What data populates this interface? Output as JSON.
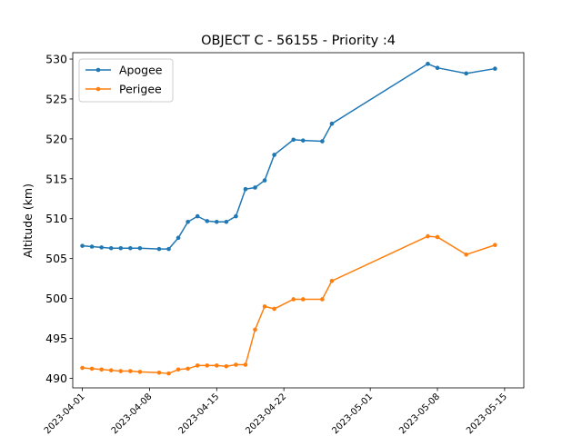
{
  "chart_data": {
    "type": "line",
    "title": "OBJECT C - 56155 - Priority :4",
    "xlabel": "",
    "ylabel": "Altitude (km)",
    "xlim": [
      "2023-03-31",
      "2023-05-17"
    ],
    "ylim": [
      488.8,
      530.8
    ],
    "x_ticks": [
      "2023-04-01",
      "2023-04-08",
      "2023-04-15",
      "2023-04-22",
      "2023-05-01",
      "2023-05-08",
      "2023-05-15"
    ],
    "y_ticks": [
      490,
      495,
      500,
      505,
      510,
      515,
      520,
      525,
      530
    ],
    "grid": false,
    "legend_position": "upper-left",
    "series": [
      {
        "name": "Apogee",
        "color": "#1f77b4",
        "points": [
          [
            "2023-04-01",
            506.6
          ],
          [
            "2023-04-02",
            506.5
          ],
          [
            "2023-04-03",
            506.4
          ],
          [
            "2023-04-04",
            506.3
          ],
          [
            "2023-04-05",
            506.3
          ],
          [
            "2023-04-06",
            506.3
          ],
          [
            "2023-04-07",
            506.3
          ],
          [
            "2023-04-09",
            506.2
          ],
          [
            "2023-04-10",
            506.2
          ],
          [
            "2023-04-11",
            507.6
          ],
          [
            "2023-04-12",
            509.6
          ],
          [
            "2023-04-13",
            510.3
          ],
          [
            "2023-04-14",
            509.7
          ],
          [
            "2023-04-15",
            509.6
          ],
          [
            "2023-04-16",
            509.6
          ],
          [
            "2023-04-17",
            510.3
          ],
          [
            "2023-04-18",
            513.7
          ],
          [
            "2023-04-19",
            513.9
          ],
          [
            "2023-04-20",
            514.8
          ],
          [
            "2023-04-21",
            518.0
          ],
          [
            "2023-04-23",
            519.9
          ],
          [
            "2023-04-24",
            519.8
          ],
          [
            "2023-04-26",
            519.7
          ],
          [
            "2023-04-27",
            521.9
          ],
          [
            "2023-05-07",
            529.4
          ],
          [
            "2023-05-08",
            528.9
          ],
          [
            "2023-05-11",
            528.2
          ],
          [
            "2023-05-14",
            528.8
          ]
        ]
      },
      {
        "name": "Perigee",
        "color": "#ff7f0e",
        "points": [
          [
            "2023-04-01",
            491.3
          ],
          [
            "2023-04-02",
            491.2
          ],
          [
            "2023-04-03",
            491.1
          ],
          [
            "2023-04-04",
            491.0
          ],
          [
            "2023-04-05",
            490.9
          ],
          [
            "2023-04-06",
            490.9
          ],
          [
            "2023-04-07",
            490.8
          ],
          [
            "2023-04-09",
            490.7
          ],
          [
            "2023-04-10",
            490.6
          ],
          [
            "2023-04-11",
            491.1
          ],
          [
            "2023-04-12",
            491.2
          ],
          [
            "2023-04-13",
            491.6
          ],
          [
            "2023-04-14",
            491.6
          ],
          [
            "2023-04-15",
            491.6
          ],
          [
            "2023-04-16",
            491.5
          ],
          [
            "2023-04-17",
            491.7
          ],
          [
            "2023-04-18",
            491.7
          ],
          [
            "2023-04-19",
            496.1
          ],
          [
            "2023-04-20",
            499.0
          ],
          [
            "2023-04-21",
            498.7
          ],
          [
            "2023-04-23",
            499.9
          ],
          [
            "2023-04-24",
            499.9
          ],
          [
            "2023-04-26",
            499.9
          ],
          [
            "2023-04-27",
            502.2
          ],
          [
            "2023-05-07",
            507.8
          ],
          [
            "2023-05-08",
            507.7
          ],
          [
            "2023-05-11",
            505.5
          ],
          [
            "2023-05-14",
            506.7
          ]
        ]
      }
    ]
  }
}
